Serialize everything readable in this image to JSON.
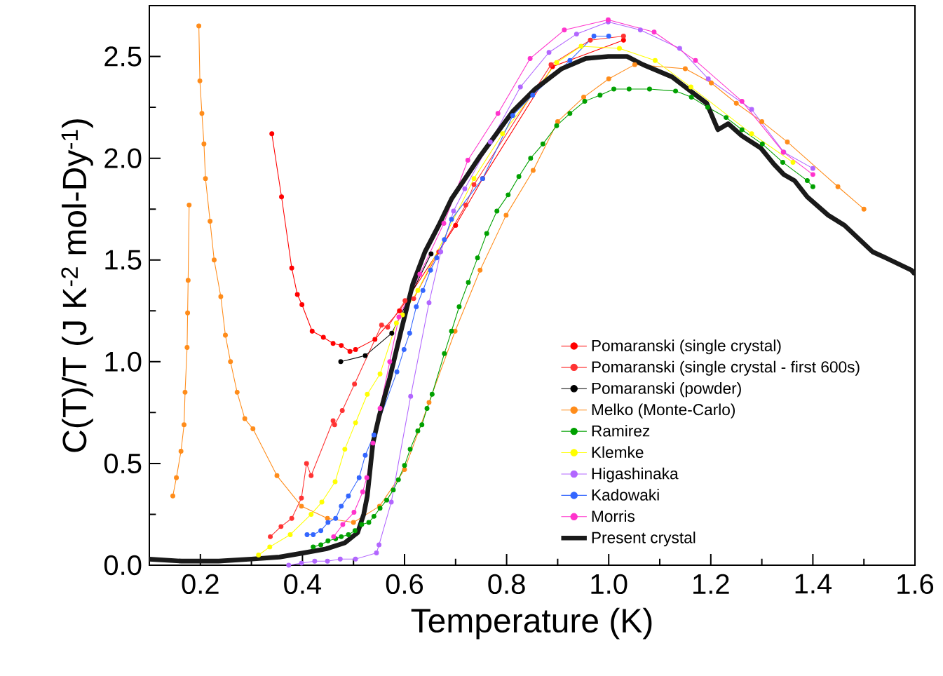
{
  "chart_data": {
    "type": "line",
    "xlabel": "Temperature (K)",
    "ylabel": "C(T)/T (J K$^{-2}$ mol-Dy$^{-1}$)",
    "xlim": [
      0.1,
      1.6
    ],
    "ylim": [
      0,
      2.75
    ],
    "xticks": [
      0.2,
      0.4,
      0.6,
      0.8,
      {
        "value": 1.0,
        "label": "1.0"
      },
      1.2,
      1.4,
      1.6
    ],
    "yticks": [
      {
        "value": 0,
        "label": "0.0"
      },
      0.5,
      {
        "value": 1.0,
        "label": "1.0"
      },
      1.5,
      {
        "value": 2.0,
        "label": "2.0"
      },
      2.5
    ],
    "legend": "bottom right",
    "grid": false,
    "series": [
      {
        "name": "Pomaranski  (single crystal)",
        "color": "#ff0000",
        "marker": "circle",
        "x": [
          0.34,
          0.359,
          0.379,
          0.39,
          0.399,
          0.419,
          0.441,
          0.46,
          0.476,
          0.493,
          0.504,
          0.542,
          0.59,
          0.7,
          0.753,
          0.89,
          1.029
        ],
        "values": [
          2.12,
          1.81,
          1.46,
          1.33,
          1.28,
          1.15,
          1.12,
          1.09,
          1.08,
          1.05,
          1.06,
          1.11,
          1.25,
          1.67,
          1.9,
          2.45,
          2.58
        ]
      },
      {
        "name": "Pomaranski (single crystal - first 600s)",
        "color": "#ff3333",
        "marker": "circle",
        "x": [
          0.337,
          0.358,
          0.379,
          0.398,
          0.408,
          0.417,
          0.46,
          0.463,
          0.478,
          0.502,
          0.555,
          0.567,
          0.601,
          0.618,
          0.667,
          0.72,
          0.736,
          0.887,
          0.964,
          1.029
        ],
        "values": [
          0.14,
          0.19,
          0.23,
          0.33,
          0.5,
          0.44,
          0.71,
          0.69,
          0.76,
          0.89,
          1.18,
          1.17,
          1.3,
          1.31,
          1.54,
          1.77,
          1.87,
          2.46,
          2.58,
          2.6
        ]
      },
      {
        "name": "Pomaranski (powder)",
        "color": "#000000",
        "marker": "circle",
        "x": [
          0.475,
          0.523,
          0.575,
          0.652
        ],
        "values": [
          1.0,
          1.03,
          1.14,
          1.53
        ]
      },
      {
        "name": "Melko (Monte-Carlo)",
        "color": "#ff8c1a",
        "marker": "circle",
        "x": [
          0.146,
          0.153,
          0.162,
          0.168,
          0.17,
          0.174,
          0.175,
          0.176,
          0.178,
          null,
          0.197,
          0.199,
          0.203,
          0.207,
          0.21,
          0.219,
          0.227,
          0.24,
          0.249,
          0.259,
          0.272,
          0.287,
          0.303,
          0.35,
          0.398,
          0.449,
          0.5,
          0.551,
          0.6,
          0.648,
          0.699,
          0.748,
          0.799,
          0.852,
          0.9,
          0.951,
          1.0,
          1.051,
          1.15,
          1.201,
          1.25,
          1.3,
          1.35,
          1.449,
          1.5
        ],
        "values": [
          0.34,
          0.43,
          0.56,
          0.69,
          0.85,
          1.07,
          1.24,
          1.4,
          1.77,
          null,
          2.65,
          2.38,
          2.22,
          2.07,
          1.9,
          1.69,
          1.5,
          1.32,
          1.13,
          1.0,
          0.85,
          0.72,
          0.67,
          0.44,
          0.29,
          0.23,
          0.21,
          0.29,
          0.47,
          0.8,
          1.15,
          1.45,
          1.72,
          1.94,
          2.18,
          2.3,
          2.39,
          2.46,
          2.44,
          2.37,
          2.27,
          2.18,
          2.08,
          1.86,
          1.75
        ]
      },
      {
        "name": "Ramirez",
        "color": "#00a000",
        "marker": "circle",
        "x": [
          0.421,
          0.436,
          0.45,
          0.465,
          0.476,
          0.49,
          0.503,
          0.516,
          0.53,
          0.54,
          0.552,
          0.565,
          0.578,
          0.588,
          0.6,
          0.611,
          0.626,
          0.634,
          0.644,
          0.654,
          0.678,
          0.692,
          0.707,
          0.725,
          0.743,
          0.761,
          0.781,
          0.803,
          0.824,
          0.847,
          0.871,
          0.898,
          0.924,
          0.953,
          0.983,
          1.01,
          1.04,
          1.08,
          1.131,
          1.162,
          1.194,
          1.23,
          1.261,
          1.301,
          1.341,
          1.389,
          1.4
        ],
        "values": [
          0.09,
          0.1,
          0.12,
          0.13,
          0.14,
          0.15,
          0.17,
          0.2,
          0.21,
          0.24,
          0.28,
          0.32,
          0.37,
          0.42,
          0.49,
          0.57,
          0.66,
          0.69,
          0.77,
          0.84,
          1.04,
          1.15,
          1.27,
          1.39,
          1.51,
          1.63,
          1.74,
          1.82,
          1.91,
          2.0,
          2.07,
          2.16,
          2.22,
          2.28,
          2.31,
          2.34,
          2.34,
          2.34,
          2.33,
          2.3,
          2.25,
          2.2,
          2.14,
          2.07,
          1.98,
          1.89,
          1.86
        ]
      },
      {
        "name": "Klemke",
        "color": "#ffff00",
        "marker": "circle",
        "x": [
          0.314,
          0.336,
          0.376,
          0.417,
          0.438,
          0.464,
          0.483,
          0.504,
          0.527,
          0.552,
          0.584,
          0.596,
          0.626,
          0.736,
          0.792,
          0.898,
          0.946,
          1.021,
          1.091,
          1.161,
          1.28,
          1.361
        ],
        "values": [
          0.05,
          0.09,
          0.15,
          0.25,
          0.31,
          0.41,
          0.57,
          0.7,
          0.84,
          0.94,
          1.19,
          1.23,
          1.35,
          1.9,
          2.12,
          2.47,
          2.55,
          2.54,
          2.48,
          2.35,
          2.12,
          1.98
        ]
      },
      {
        "name": "Higashinaka",
        "color": "#b266ff",
        "marker": "circle",
        "x": [
          0.373,
          0.398,
          0.424,
          0.449,
          0.474,
          0.504,
          0.545,
          0.55,
          0.574,
          0.612,
          0.648,
          0.671,
          0.696,
          0.718,
          0.768,
          0.827,
          0.883,
          0.937,
          0.999,
          1.062,
          1.139,
          1.195,
          1.28,
          1.343,
          1.4
        ],
        "values": [
          0.0,
          0.01,
          0.02,
          0.02,
          0.03,
          0.03,
          0.06,
          0.1,
          0.31,
          0.83,
          1.29,
          1.54,
          1.74,
          1.85,
          2.08,
          2.35,
          2.52,
          2.61,
          2.67,
          2.63,
          2.54,
          2.39,
          2.24,
          2.03,
          1.95
        ]
      },
      {
        "name": "Kadowaki",
        "color": "#3366ff",
        "marker": "circle",
        "x": [
          0.409,
          0.421,
          0.436,
          0.45,
          0.465,
          0.476,
          0.49,
          0.511,
          0.523,
          0.54,
          0.585,
          0.599,
          0.61,
          0.623,
          0.636,
          0.651,
          0.663,
          0.678,
          0.692,
          0.753,
          0.812,
          0.851,
          0.924,
          0.971,
          1.0
        ],
        "values": [
          0.15,
          0.15,
          0.17,
          0.21,
          0.23,
          0.29,
          0.34,
          0.43,
          0.54,
          0.64,
          0.95,
          1.06,
          1.14,
          1.27,
          1.35,
          1.45,
          1.51,
          1.6,
          1.7,
          1.9,
          2.21,
          2.31,
          2.48,
          2.6,
          2.6
        ]
      },
      {
        "name": "Morris",
        "color": "#ff33cc",
        "marker": "circle",
        "x": [
          0.461,
          0.479,
          0.501,
          0.518,
          0.526,
          0.538,
          0.552,
          0.571,
          0.589,
          0.63,
          0.677,
          0.724,
          0.783,
          0.846,
          0.913,
          0.999,
          1.089,
          1.17,
          1.261,
          1.342,
          1.4
        ],
        "values": [
          0.14,
          0.2,
          0.26,
          0.36,
          0.43,
          0.6,
          0.77,
          1.0,
          1.22,
          1.43,
          1.68,
          1.99,
          2.22,
          2.49,
          2.63,
          2.68,
          2.62,
          2.48,
          2.28,
          2.03,
          1.92
        ]
      },
      {
        "name": "Present crystal",
        "color": "#1a1a1a",
        "marker": "none",
        "x": [
          0.1,
          0.163,
          0.236,
          0.3,
          0.355,
          0.401,
          0.446,
          0.483,
          0.508,
          0.52,
          0.527,
          0.538,
          0.55,
          0.571,
          0.593,
          0.616,
          0.64,
          0.667,
          0.692,
          0.748,
          0.812,
          0.856,
          0.908,
          0.955,
          0.999,
          1.036,
          1.067,
          1.124,
          1.155,
          1.192,
          1.214,
          1.234,
          1.261,
          1.298,
          1.324,
          1.343,
          1.364,
          1.389,
          1.43,
          1.462,
          1.517,
          1.543,
          1.593,
          1.6
        ],
        "values": [
          0.03,
          0.02,
          0.02,
          0.03,
          0.04,
          0.06,
          0.08,
          0.11,
          0.16,
          0.25,
          0.34,
          0.6,
          0.73,
          0.92,
          1.15,
          1.38,
          1.54,
          1.67,
          1.8,
          2.01,
          2.23,
          2.34,
          2.44,
          2.49,
          2.5,
          2.5,
          2.46,
          2.4,
          2.34,
          2.27,
          2.14,
          2.17,
          2.11,
          2.05,
          1.97,
          1.92,
          1.89,
          1.81,
          1.72,
          1.67,
          1.54,
          1.51,
          1.45,
          1.43
        ]
      }
    ]
  }
}
